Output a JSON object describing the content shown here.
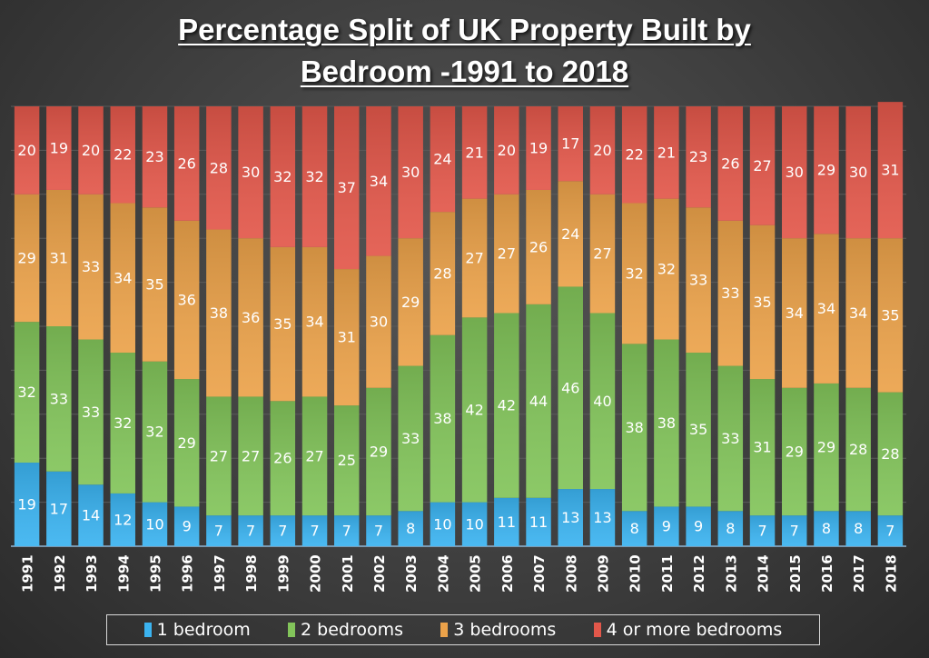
{
  "chart_data": {
    "type": "bar",
    "stacked": true,
    "title_lines": [
      "Percentage Split of UK Property Built by",
      "Bedroom -1991 to 2018"
    ],
    "xlabel": "",
    "ylabel": "",
    "ylim": [
      0,
      100
    ],
    "grid": true,
    "legend_position": "bottom",
    "categories": [
      "1991",
      "1992",
      "1993",
      "1994",
      "1995",
      "1996",
      "1997",
      "1998",
      "1999",
      "2000",
      "2001",
      "2002",
      "2003",
      "2004",
      "2005",
      "2006",
      "2007",
      "2008",
      "2009",
      "2010",
      "2011",
      "2012",
      "2013",
      "2014",
      "2015",
      "2016",
      "2017",
      "2018"
    ],
    "series": [
      {
        "name": "1 bedroom",
        "color": "#3bb3f0",
        "values": [
          19,
          17,
          14,
          12,
          10,
          9,
          7,
          7,
          7,
          7,
          7,
          7,
          8,
          10,
          10,
          11,
          11,
          13,
          13,
          8,
          9,
          9,
          8,
          7,
          7,
          8,
          8,
          7
        ]
      },
      {
        "name": "2 bedrooms",
        "color": "#82c45a",
        "values": [
          32,
          33,
          33,
          32,
          32,
          29,
          27,
          27,
          26,
          27,
          25,
          29,
          33,
          38,
          42,
          42,
          44,
          46,
          40,
          38,
          38,
          35,
          33,
          31,
          29,
          29,
          28,
          28
        ]
      },
      {
        "name": "3 bedrooms",
        "color": "#eba24a",
        "values": [
          29,
          31,
          33,
          34,
          35,
          36,
          38,
          36,
          35,
          34,
          31,
          30,
          29,
          28,
          27,
          27,
          26,
          24,
          27,
          32,
          32,
          33,
          33,
          35,
          34,
          34,
          34,
          35
        ]
      },
      {
        "name": "4 or more bedrooms",
        "color": "#e2574a",
        "values": [
          20,
          19,
          20,
          22,
          23,
          26,
          28,
          30,
          32,
          32,
          37,
          34,
          30,
          24,
          21,
          20,
          19,
          17,
          20,
          22,
          21,
          23,
          26,
          27,
          30,
          29,
          30,
          31
        ]
      }
    ]
  }
}
